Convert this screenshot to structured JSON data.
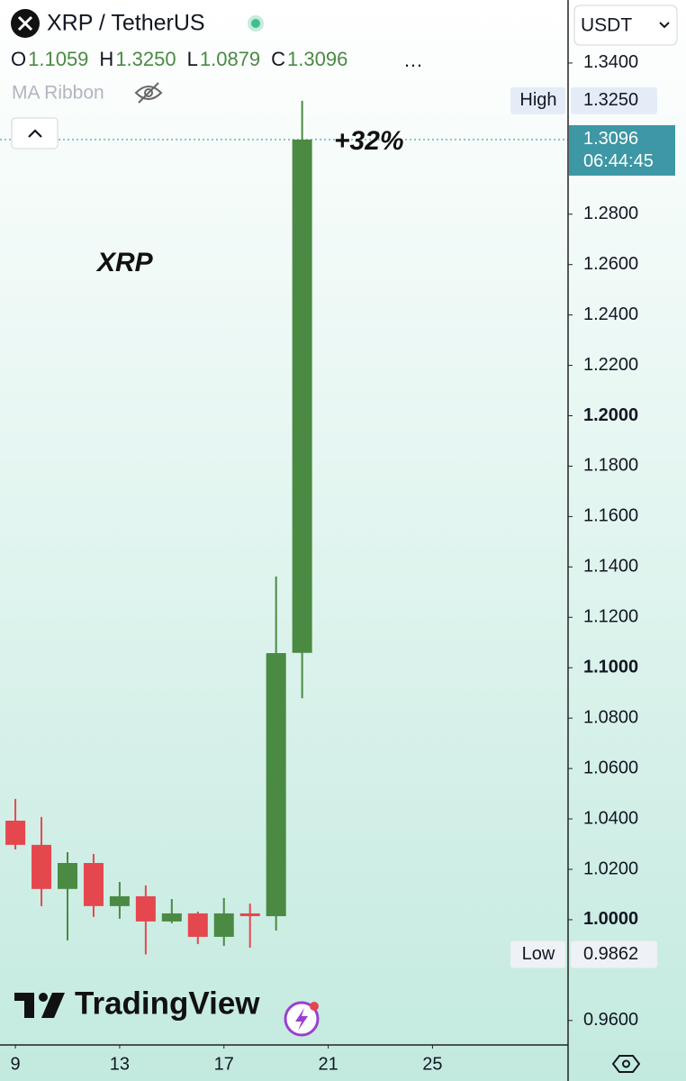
{
  "chart_data": {
    "type": "candlestick",
    "title": "XRP / TetherUS",
    "legend_ohlc": [
      {
        "key": "O",
        "label": "1.1059"
      },
      {
        "key": "H",
        "label": "1.3250"
      },
      {
        "key": "L",
        "label": "1.0879"
      },
      {
        "key": "C",
        "label": "1.3096"
      }
    ],
    "indicator": "MA Ribbon",
    "currency": "USDT",
    "annotations": [
      "+32%",
      "XRP"
    ],
    "watermark": "TradingView",
    "x": [
      9,
      10,
      11,
      12,
      13,
      14,
      15,
      16,
      17,
      18,
      19,
      20
    ],
    "open": [
      1.0393,
      1.0297,
      1.0122,
      1.0225,
      1.0054,
      1.0093,
      0.9993,
      1.0025,
      0.9932,
      1.0025,
      1.0014,
      1.1059
    ],
    "high": [
      1.0479,
      1.0408,
      1.0268,
      1.0261,
      1.015,
      1.0136,
      1.0082,
      1.0032,
      1.0086,
      1.0064,
      1.1362,
      1.325
    ],
    "low": [
      1.0279,
      1.0054,
      0.9918,
      1.0011,
      1.0004,
      0.9862,
      0.9986,
      0.9903,
      0.9896,
      0.9889,
      0.9957,
      1.0879
    ],
    "close": [
      1.0297,
      1.0122,
      1.0225,
      1.0054,
      1.0093,
      0.9993,
      1.0025,
      0.9932,
      1.0025,
      1.0014,
      1.1058,
      1.3096
    ],
    "colors": {
      "up": "#4a8a43",
      "down": "#e5474f"
    },
    "high_marker": {
      "name": "High",
      "value": 1.325,
      "label": "1.3250"
    },
    "low_marker": {
      "name": "Low",
      "value": 0.9862,
      "label": "0.9862"
    },
    "last_price": {
      "value": 1.3096,
      "label": "1.3096",
      "countdown": "06:44:45",
      "color": "#3d97a5"
    },
    "xlim": [
      8.41,
      30.2
    ],
    "xticks": [
      9,
      13,
      17,
      21,
      25
    ],
    "ylim": [
      0.951,
      1.365
    ],
    "yticks": [
      {
        "value": 0.96,
        "label": "0.9600"
      },
      {
        "value": 1.0,
        "label": "1.0000"
      },
      {
        "value": 1.02,
        "label": "1.0200"
      },
      {
        "value": 1.04,
        "label": "1.0400"
      },
      {
        "value": 1.06,
        "label": "1.0600"
      },
      {
        "value": 1.08,
        "label": "1.0800"
      },
      {
        "value": 1.1,
        "label": "1.1000"
      },
      {
        "value": 1.12,
        "label": "1.1200"
      },
      {
        "value": 1.14,
        "label": "1.1400"
      },
      {
        "value": 1.16,
        "label": "1.1600"
      },
      {
        "value": 1.18,
        "label": "1.1800"
      },
      {
        "value": 1.2,
        "label": "1.2000"
      },
      {
        "value": 1.22,
        "label": "1.2200"
      },
      {
        "value": 1.24,
        "label": "1.2400"
      },
      {
        "value": 1.26,
        "label": "1.2600"
      },
      {
        "value": 1.28,
        "label": "1.2800"
      },
      {
        "value": 1.34,
        "label": "1.3400"
      }
    ]
  }
}
